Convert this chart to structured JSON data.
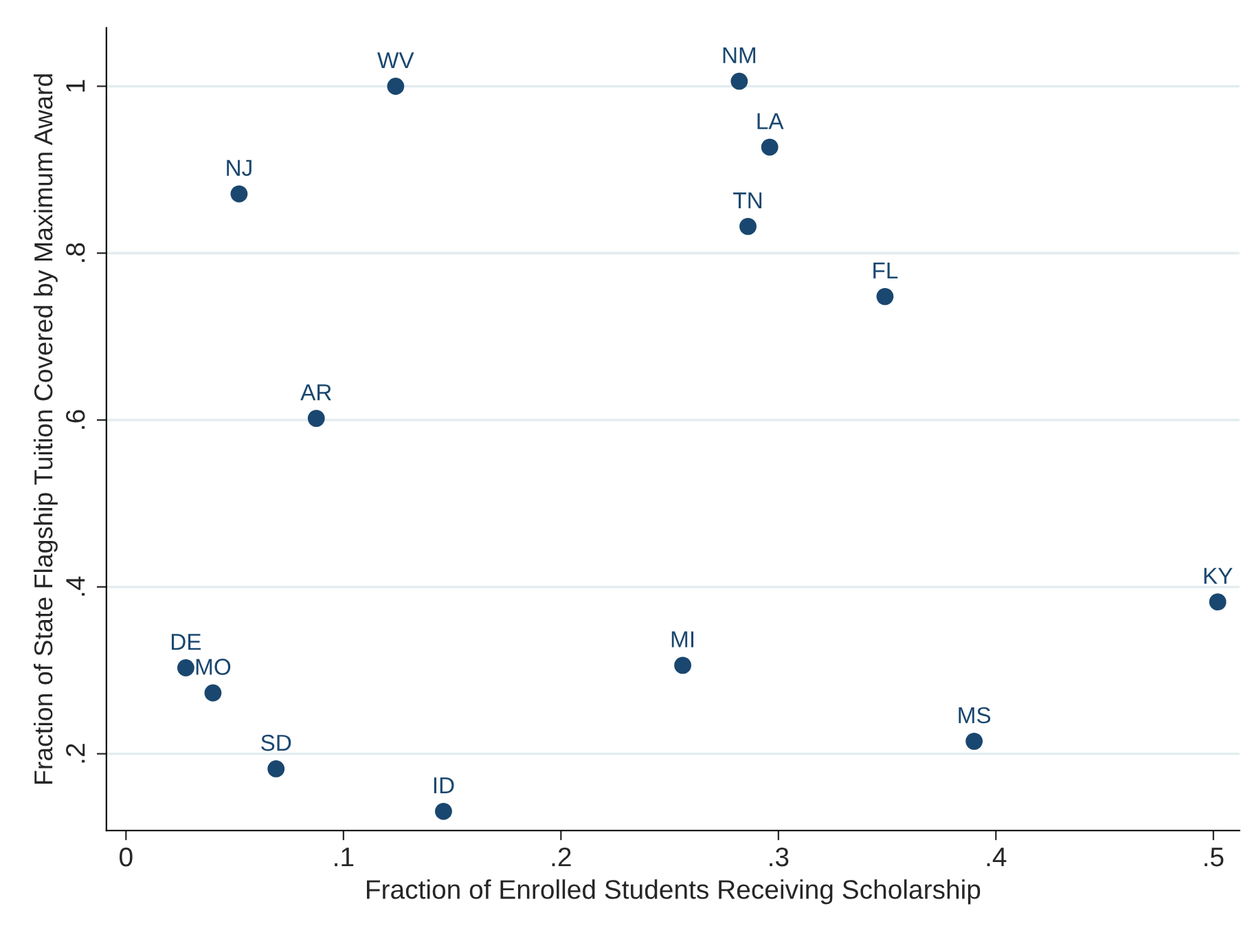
{
  "chart_data": {
    "type": "scatter",
    "xlabel": "Fraction of Enrolled Students Receiving Scholarship",
    "ylabel": "Fraction of State Flagship Tuition Covered by Maximum Award",
    "series": [
      {
        "color": "#1a476f",
        "x": [
          0.124,
          0.282,
          0.296,
          0.286,
          0.349,
          0.052,
          0.0875,
          0.502,
          0.0275,
          0.04,
          0.256,
          0.39,
          0.069,
          0.146
        ],
        "values": [
          1.0,
          1.006,
          0.927,
          0.832,
          0.748,
          0.871,
          0.602,
          0.382,
          0.303,
          0.273,
          0.306,
          0.215,
          0.182,
          0.131
        ]
      }
    ],
    "annotations": [
      {
        "text": "WV",
        "x": 0.124,
        "y": 1.0
      },
      {
        "text": "NM",
        "x": 0.282,
        "y": 1.006
      },
      {
        "text": "LA",
        "x": 0.296,
        "y": 0.927
      },
      {
        "text": "TN",
        "x": 0.286,
        "y": 0.832
      },
      {
        "text": "FL",
        "x": 0.349,
        "y": 0.748
      },
      {
        "text": "NJ",
        "x": 0.052,
        "y": 0.871
      },
      {
        "text": "AR",
        "x": 0.0875,
        "y": 0.602
      },
      {
        "text": "KY",
        "x": 0.502,
        "y": 0.382
      },
      {
        "text": "DE",
        "x": 0.0275,
        "y": 0.303
      },
      {
        "text": "MO",
        "x": 0.04,
        "y": 0.273
      },
      {
        "text": "MI",
        "x": 0.256,
        "y": 0.306
      },
      {
        "text": "MS",
        "x": 0.39,
        "y": 0.215
      },
      {
        "text": "SD",
        "x": 0.069,
        "y": 0.182
      },
      {
        "text": "ID",
        "x": 0.146,
        "y": 0.131
      }
    ],
    "xlim": [
      -0.009,
      0.512
    ],
    "ylim": [
      0.108,
      1.07
    ],
    "xticks": [
      {
        "value": 0,
        "label": "0"
      },
      {
        "value": 0.1,
        "label": ".1"
      },
      {
        "value": 0.2,
        "label": ".2"
      },
      {
        "value": 0.3,
        "label": ".3"
      },
      {
        "value": 0.4,
        "label": ".4"
      },
      {
        "value": 0.5,
        "label": ".5"
      }
    ],
    "yticks": [
      {
        "value": 0.2,
        "label": ".2"
      },
      {
        "value": 0.4,
        "label": ".4"
      },
      {
        "value": 0.6,
        "label": ".6"
      },
      {
        "value": 0.8,
        "label": ".8"
      },
      {
        "value": 1,
        "label": "1"
      }
    ],
    "grid": "y",
    "marker": "circle",
    "legend": false
  }
}
